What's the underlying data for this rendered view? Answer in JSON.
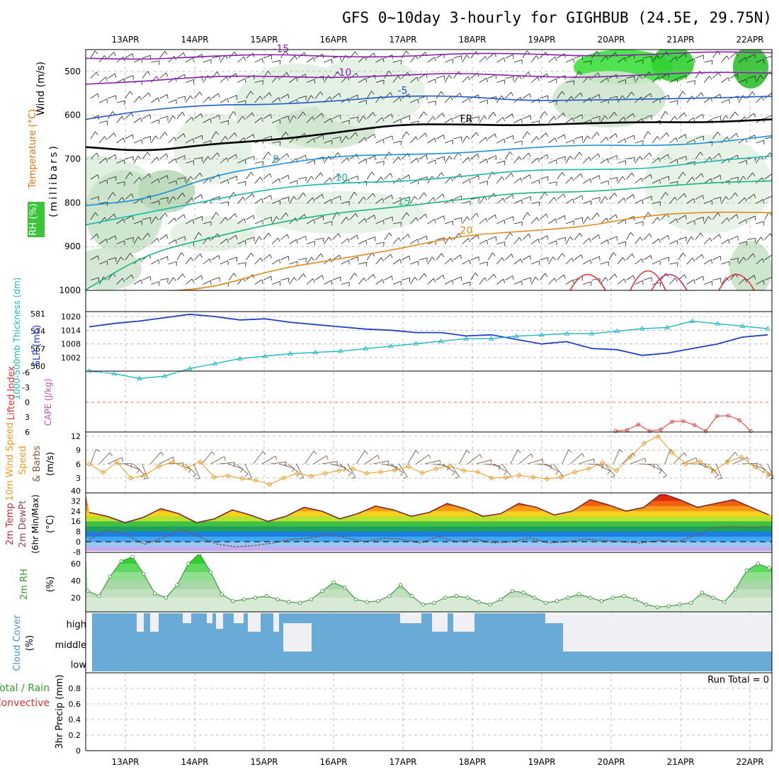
{
  "title": "GFS 0~10day 3-hourly for GIGHBUB (24.5E, 29.75N)",
  "dates": [
    "13APR",
    "14APR",
    "15APR",
    "16APR",
    "17APR",
    "18APR",
    "19APR",
    "20APR",
    "21APR",
    "22APR"
  ],
  "panel_labels": {
    "upper": {
      "wind": "Wind (m/s)",
      "temp": "Temperature (°C)",
      "rh": "RH (%)",
      "unit": "(millibars)"
    },
    "slp": {
      "thick": "1000-500mb Thickness (dm)",
      "slp": "SLP (mb)"
    },
    "li": {
      "li": "Lifted Index",
      "cape": "CAPE (J/kg)"
    },
    "wind10": {
      "a": "10m Wind Speed",
      "b": "(m/s)",
      "c": "& Barbs"
    },
    "temp2m": {
      "a": "2m Temp",
      "b": "2m DewPt",
      "c": "(6hr Min/Max)",
      "d": "(°C)"
    },
    "rh2m": {
      "a": "2m RH",
      "b": "(%)"
    },
    "cloud": {
      "a": "Cloud Cover",
      "b": "(%)"
    },
    "precip": {
      "a": "Total / Rain",
      "b": "Convective",
      "c": "3hr Precip (mm)",
      "run_total": "Run Total = 0"
    }
  },
  "chart_data": [
    {
      "type": "heatmap",
      "panel": "upper-air cross section",
      "ylabel": "millibars",
      "y_ticks": [
        500,
        600,
        700,
        800,
        900,
        1000
      ],
      "ylim": [
        450,
        1000
      ],
      "temperature_contour_labels": [
        "-15",
        "-10",
        "-5",
        "FR",
        "5",
        "10",
        "15",
        "20"
      ],
      "rh_contour_labels": [
        "30",
        "50",
        "30"
      ],
      "contours": [
        {
          "name": "-15",
          "p": [
            470,
            468,
            466,
            465,
            464,
            463,
            462,
            462,
            461,
            460,
            459,
            458
          ]
        },
        {
          "name": "-10",
          "p": [
            525,
            520,
            515,
            512,
            510,
            509,
            508,
            509,
            510,
            510,
            505,
            500
          ]
        },
        {
          "name": "-5",
          "p": [
            605,
            590,
            580,
            572,
            565,
            560,
            558,
            562,
            565,
            568,
            560,
            552
          ]
        },
        {
          "name": "FR",
          "p": [
            672,
            688,
            665,
            652,
            642,
            625,
            618,
            620,
            622,
            618,
            612,
            608
          ]
        },
        {
          "name": "5",
          "p": [
            810,
            795,
            735,
            712,
            698,
            690,
            682,
            676,
            672,
            668,
            660,
            650
          ]
        },
        {
          "name": "10",
          "p": [
            855,
            820,
            790,
            770,
            758,
            748,
            738,
            730,
            725,
            718,
            705,
            698
          ]
        },
        {
          "name": "15",
          "p": [
            1000,
            910,
            880,
            852,
            822,
            805,
            795,
            780,
            772,
            762,
            758,
            752
          ]
        },
        {
          "name": "20",
          "p": [
            1000,
            1000,
            1000,
            955,
            925,
            905,
            880,
            865,
            850,
            830,
            825,
            820
          ]
        }
      ]
    },
    {
      "type": "line",
      "panel": "SLP and thickness",
      "left_ticks": [
        560,
        567,
        574,
        581
      ],
      "right_ticks": [
        1002,
        1008,
        1014,
        1020
      ],
      "series": [
        {
          "name": "SLP (mb)",
          "values": [
            1015.5,
            1017,
            1018,
            1019.5,
            1021,
            1020,
            1018.5,
            1019,
            1017.5,
            1016.5,
            1015.5,
            1014.5,
            1014,
            1013,
            1013,
            1011.5,
            1012,
            1010,
            1008,
            1009,
            1006,
            1005.5,
            1003,
            1004,
            1006,
            1008,
            1011,
            1012
          ]
        },
        {
          "name": "1000-500mb Thickness (dm)",
          "values": [
            558,
            557,
            555,
            556,
            559,
            561,
            563,
            564,
            565,
            565.5,
            566,
            567,
            568,
            569,
            570,
            571,
            571,
            572,
            572.5,
            573,
            573,
            574,
            575,
            575.5,
            578,
            577,
            576,
            575
          ]
        }
      ]
    },
    {
      "type": "line",
      "panel": "Lifted index and CAPE",
      "y_ticks": [
        -6,
        -3,
        0,
        3,
        6
      ],
      "series": [
        {
          "name": "Lifted Index",
          "values": [
            null,
            null,
            null,
            null,
            null,
            null,
            null,
            null,
            null,
            null,
            null,
            null,
            null,
            null,
            null,
            null,
            null,
            5.8,
            5.6,
            4.5,
            5.8,
            5.5,
            3.9,
            3.8,
            4.6,
            5.8,
            2.8,
            2.7,
            3.6,
            5.8
          ]
        }
      ]
    },
    {
      "type": "line",
      "panel": "10m wind",
      "y_ticks": [
        3,
        6,
        9,
        12
      ],
      "series": [
        {
          "name": "10m Wind Speed",
          "values": [
            6,
            4.2,
            6.4,
            3,
            3.6,
            5.5,
            6.4,
            5.2,
            6.5,
            3.2,
            3.5,
            2.9,
            2.5,
            1.6,
            3,
            4,
            3.4,
            4,
            4.6,
            5,
            4,
            4.3,
            4.7,
            5.5,
            4.1,
            5,
            5.6,
            4.6,
            4.3,
            3,
            3.1,
            3.6,
            3.2,
            2.8,
            3.2,
            4.3,
            5,
            6.3,
            4.6,
            7.5,
            10.5,
            12,
            8.5,
            6,
            6.6,
            4.5,
            6.5,
            7.5,
            5.3,
            3.7
          ]
        }
      ]
    },
    {
      "type": "area",
      "panel": "2m temperature and dewpoint",
      "y_ticks": [
        -8,
        0,
        8,
        16,
        24,
        32,
        40
      ],
      "series": [
        {
          "name": "2m Temp",
          "values": [
            23,
            20,
            15,
            19,
            26,
            22,
            15,
            18,
            25,
            21,
            16,
            20,
            27,
            24,
            18,
            22,
            28,
            25,
            20,
            23,
            30,
            26,
            20,
            22,
            30,
            27,
            21,
            24,
            33,
            29,
            24,
            27,
            38,
            33,
            27,
            30,
            33,
            27,
            21
          ]
        },
        {
          "name": "2m DewPt",
          "values": [
            2,
            9,
            6,
            -2,
            3,
            10,
            4,
            -2,
            -4,
            -3,
            -1,
            2,
            3,
            6,
            3,
            0,
            3,
            2,
            -1,
            4,
            0,
            2,
            -1,
            0,
            3,
            -1,
            0,
            2,
            1,
            0,
            -1,
            1,
            0,
            5,
            11,
            12,
            11,
            12
          ]
        }
      ]
    },
    {
      "type": "area",
      "panel": "2m relative humidity",
      "y_ticks": [
        20,
        40,
        60
      ],
      "series": [
        {
          "name": "2m RH",
          "values": [
            28,
            22,
            45,
            63,
            68,
            48,
            25,
            20,
            35,
            60,
            72,
            50,
            24,
            16,
            18,
            20,
            22,
            18,
            15,
            14,
            18,
            28,
            38,
            32,
            18,
            15,
            16,
            22,
            35,
            22,
            12,
            14,
            20,
            22,
            20,
            15,
            12,
            18,
            28,
            26,
            20,
            14,
            16,
            20,
            24,
            20,
            16,
            20,
            22,
            18,
            12,
            9,
            10,
            12,
            14,
            26,
            20,
            15,
            30,
            52,
            60,
            55
          ]
        }
      ]
    },
    {
      "type": "heatmap",
      "panel": "cloud cover",
      "rows": [
        "high",
        "middle",
        "low"
      ]
    },
    {
      "type": "bar",
      "panel": "3hr precipitation",
      "ylabel": "3hr Precip (mm)",
      "y_ticks": [
        0,
        0.2,
        0.4,
        0.6,
        0.8
      ],
      "ylim": [
        0,
        1
      ],
      "values": []
    }
  ],
  "colors": {
    "slp": "#1f3fd0",
    "thickness": "#1bb6c8",
    "li": "#e23232",
    "wind10": "#f09a20",
    "dew": "#8a4a4a",
    "rh_line": "#2f8a2f",
    "cloud": "#6aaad6",
    "frame": "#000000"
  }
}
